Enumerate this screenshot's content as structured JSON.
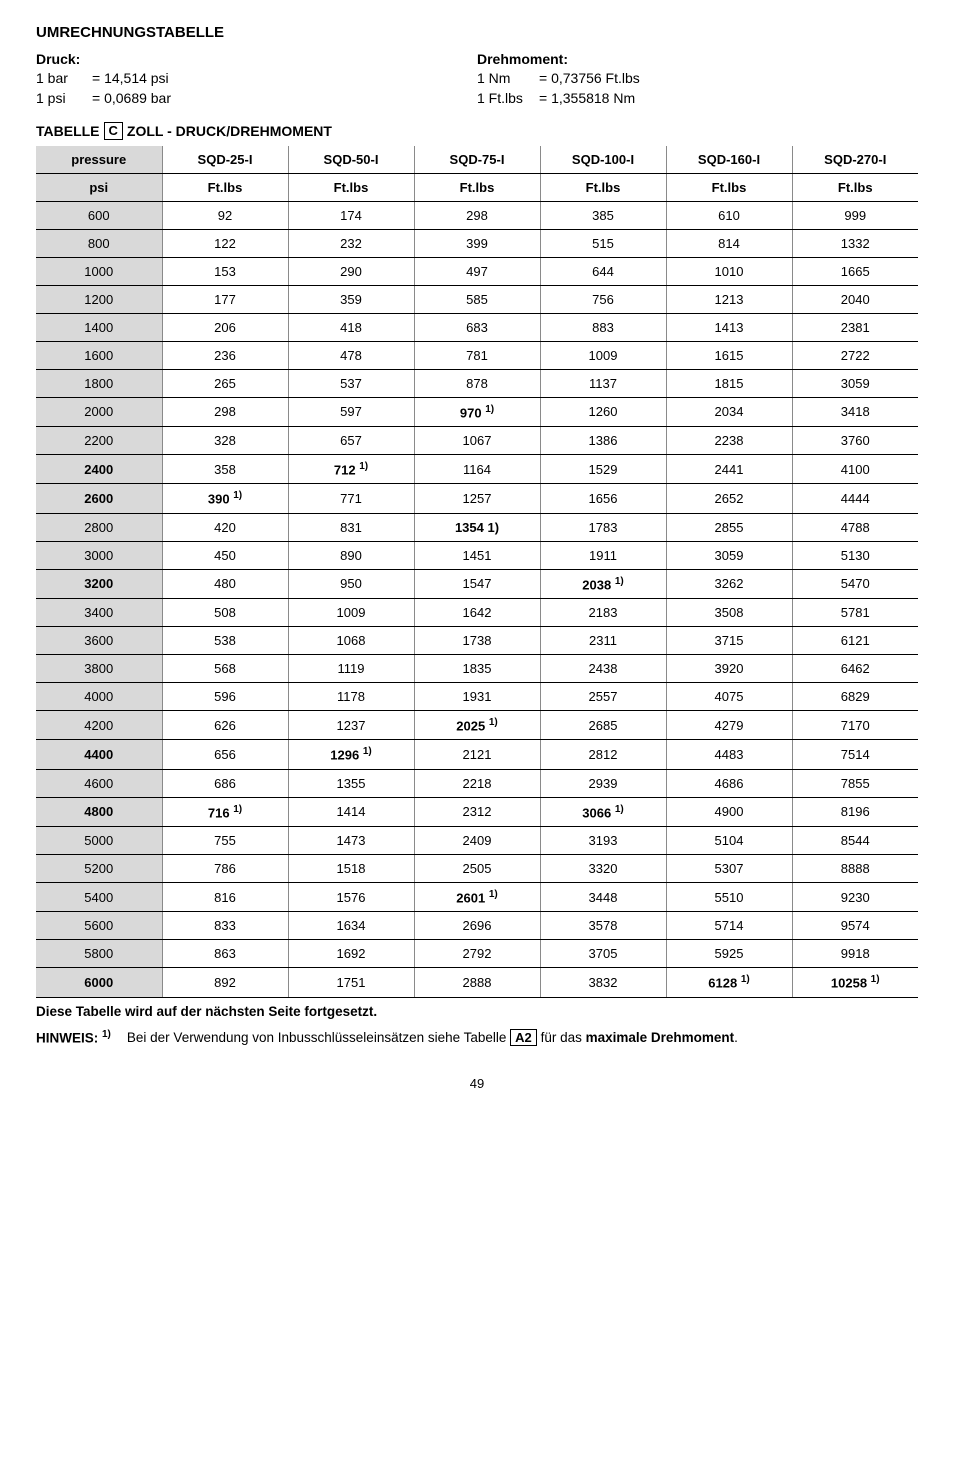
{
  "heading": "UMRECHNUNGSTABELLE",
  "conversions": {
    "left": {
      "title": "Druck:",
      "rows": [
        {
          "unit": "1 bar",
          "eq": "=  14,514 psi"
        },
        {
          "unit": "1 psi",
          "eq": "=  0,0689 bar"
        }
      ]
    },
    "right": {
      "title": "Drehmoment:",
      "rows": [
        {
          "unit": "1 Nm",
          "eq": "=  0,73756 Ft.lbs"
        },
        {
          "unit": "1 Ft.lbs",
          "eq": "=  1,355818 Nm"
        }
      ]
    }
  },
  "table_title_pre": "TABELLE",
  "table_title_box": "C",
  "table_title_post": " ZOLL - DRUCK/DREHMOMENT",
  "table": {
    "columns": [
      "pressure",
      "SQD-25-I",
      "SQD-50-I",
      "SQD-75-I",
      "SQD-100-I",
      "SQD-160-I",
      "SQD-270-I"
    ],
    "unit_row": [
      "psi",
      "Ft.lbs",
      "Ft.lbs",
      "Ft.lbs",
      "Ft.lbs",
      "Ft.lbs",
      "Ft.lbs"
    ],
    "rows": [
      {
        "psi": "600",
        "c": [
          "92",
          "174",
          "298",
          "385",
          "610",
          "999"
        ],
        "bold_psi": false,
        "bold_idx": []
      },
      {
        "psi": "800",
        "c": [
          "122",
          "232",
          "399",
          "515",
          "814",
          "1332"
        ],
        "bold_psi": false,
        "bold_idx": []
      },
      {
        "psi": "1000",
        "c": [
          "153",
          "290",
          "497",
          "644",
          "1010",
          "1665"
        ],
        "bold_psi": false,
        "bold_idx": []
      },
      {
        "psi": "1200",
        "c": [
          "177",
          "359",
          "585",
          "756",
          "1213",
          "2040"
        ],
        "bold_psi": false,
        "bold_idx": []
      },
      {
        "psi": "1400",
        "c": [
          "206",
          "418",
          "683",
          "883",
          "1413",
          "2381"
        ],
        "bold_psi": false,
        "bold_idx": []
      },
      {
        "psi": "1600",
        "c": [
          "236",
          "478",
          "781",
          "1009",
          "1615",
          "2722"
        ],
        "bold_psi": false,
        "bold_idx": []
      },
      {
        "psi": "1800",
        "c": [
          "265",
          "537",
          "878",
          "1137",
          "1815",
          "3059"
        ],
        "bold_psi": false,
        "bold_idx": []
      },
      {
        "psi": "2000",
        "c": [
          "298",
          "597",
          "970",
          "1260",
          "2034",
          "3418"
        ],
        "bold_psi": false,
        "bold_idx": [
          2
        ],
        "sup_idx": [
          2
        ]
      },
      {
        "psi": "2200",
        "c": [
          "328",
          "657",
          "1067",
          "1386",
          "2238",
          "3760"
        ],
        "bold_psi": false,
        "bold_idx": []
      },
      {
        "psi": "2400",
        "c": [
          "358",
          "712",
          "1164",
          "1529",
          "2441",
          "4100"
        ],
        "bold_psi": true,
        "bold_idx": [
          1
        ],
        "sup_idx": [
          1
        ]
      },
      {
        "psi": "2600",
        "c": [
          "390",
          "771",
          "1257",
          "1656",
          "2652",
          "4444"
        ],
        "bold_psi": true,
        "bold_idx": [
          0
        ],
        "sup_idx": [
          0
        ]
      },
      {
        "psi": "2800",
        "c": [
          "420",
          "831",
          "1354 1)",
          "1783",
          "2855",
          "4788"
        ],
        "bold_psi": false,
        "bold_idx": [
          2
        ]
      },
      {
        "psi": "3000",
        "c": [
          "450",
          "890",
          "1451",
          "1911",
          "3059",
          "5130"
        ],
        "bold_psi": false,
        "bold_idx": []
      },
      {
        "psi": "3200",
        "c": [
          "480",
          "950",
          "1547",
          "2038",
          "3262",
          "5470"
        ],
        "bold_psi": true,
        "bold_idx": [
          3
        ],
        "sup_idx": [
          3
        ]
      },
      {
        "psi": "3400",
        "c": [
          "508",
          "1009",
          "1642",
          "2183",
          "3508",
          "5781"
        ],
        "bold_psi": false,
        "bold_idx": []
      },
      {
        "psi": "3600",
        "c": [
          "538",
          "1068",
          "1738",
          "2311",
          "3715",
          "6121"
        ],
        "bold_psi": false,
        "bold_idx": []
      },
      {
        "psi": "3800",
        "c": [
          "568",
          "1119",
          "1835",
          "2438",
          "3920",
          "6462"
        ],
        "bold_psi": false,
        "bold_idx": []
      },
      {
        "psi": "4000",
        "c": [
          "596",
          "1178",
          "1931",
          "2557",
          "4075",
          "6829"
        ],
        "bold_psi": false,
        "bold_idx": []
      },
      {
        "psi": "4200",
        "c": [
          "626",
          "1237",
          "2025",
          "2685",
          "4279",
          "7170"
        ],
        "bold_psi": false,
        "bold_idx": [
          2
        ],
        "sup_idx": [
          2
        ]
      },
      {
        "psi": "4400",
        "c": [
          "656",
          "1296",
          "2121",
          "2812",
          "4483",
          "7514"
        ],
        "bold_psi": true,
        "bold_idx": [
          1
        ],
        "sup_idx": [
          1
        ]
      },
      {
        "psi": "4600",
        "c": [
          "686",
          "1355",
          "2218",
          "2939",
          "4686",
          "7855"
        ],
        "bold_psi": false,
        "bold_idx": []
      },
      {
        "psi": "4800",
        "c": [
          "716",
          "1414",
          "2312",
          "3066",
          "4900",
          "8196"
        ],
        "bold_psi": true,
        "bold_idx": [
          0,
          3
        ],
        "sup_idx": [
          0,
          3
        ]
      },
      {
        "psi": "5000",
        "c": [
          "755",
          "1473",
          "2409",
          "3193",
          "5104",
          "8544"
        ],
        "bold_psi": false,
        "bold_idx": []
      },
      {
        "psi": "5200",
        "c": [
          "786",
          "1518",
          "2505",
          "3320",
          "5307",
          "8888"
        ],
        "bold_psi": false,
        "bold_idx": []
      },
      {
        "psi": "5400",
        "c": [
          "816",
          "1576",
          "2601",
          "3448",
          "5510",
          "9230"
        ],
        "bold_psi": false,
        "bold_idx": [
          2
        ],
        "sup_idx": [
          2
        ]
      },
      {
        "psi": "5600",
        "c": [
          "833",
          "1634",
          "2696",
          "3578",
          "5714",
          "9574"
        ],
        "bold_psi": false,
        "bold_idx": []
      },
      {
        "psi": "5800",
        "c": [
          "863",
          "1692",
          "2792",
          "3705",
          "5925",
          "9918"
        ],
        "bold_psi": false,
        "bold_idx": []
      },
      {
        "psi": "6000",
        "c": [
          "892",
          "1751",
          "2888",
          "3832",
          "6128",
          "10258"
        ],
        "bold_psi": true,
        "bold_idx": [
          4,
          5
        ],
        "sup_idx": [
          4,
          5
        ]
      }
    ]
  },
  "continuation": "Diese Tabelle wird auf der nächsten Seite fortgesetzt.",
  "hinweis_label": "HINWEIS: ",
  "hinweis_sup": "1)",
  "hinweis_pre": "Bei der Verwendung von Inbusschlüsseleinsätzen siehe Tabelle ",
  "hinweis_box": "A2",
  "hinweis_post": " für das ",
  "hinweis_bold": "maximale Drehmoment",
  "page_num": "49"
}
